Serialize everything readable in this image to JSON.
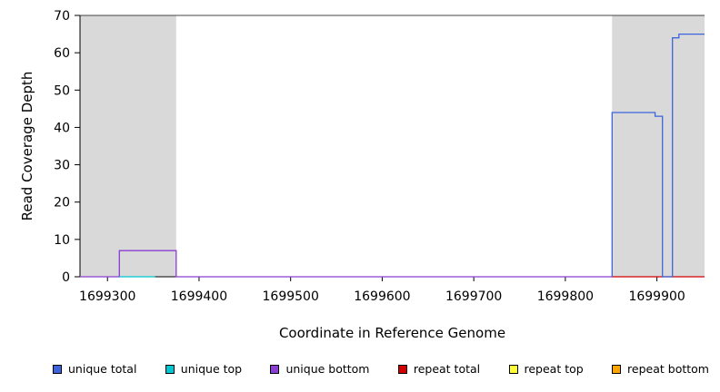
{
  "chart_data": {
    "type": "line",
    "title": "",
    "xlabel": "Coordinate in Reference Genome",
    "ylabel": "Read Coverage Depth",
    "xlim": [
      1699270,
      1699952
    ],
    "ylim": [
      0,
      70
    ],
    "xticks": [
      1699300,
      1699400,
      1699500,
      1699600,
      1699700,
      1699800,
      1699900
    ],
    "yticks": [
      0,
      10,
      20,
      30,
      40,
      50,
      60,
      70
    ],
    "grid": false,
    "legend_position": "bottom",
    "shaded_regions": [
      {
        "name": "shaded-region-left",
        "x0": 1699270,
        "x1": 1699375,
        "color": "#d9d9d9"
      },
      {
        "name": "shaded-region-right",
        "x0": 1699851,
        "x1": 1699952,
        "color": "#d9d9d9"
      }
    ],
    "series": [
      {
        "name": "unique bottom",
        "color": "#8a3fd1",
        "points": [
          [
            1699270,
            0
          ],
          [
            1699313,
            0
          ],
          [
            1699313,
            7
          ],
          [
            1699375,
            7
          ],
          [
            1699375,
            0
          ],
          [
            1699851,
            0
          ]
        ]
      },
      {
        "name": "unique top",
        "color": "#00c8d2",
        "points": [
          [
            1699313,
            0
          ],
          [
            1699352,
            0
          ]
        ]
      },
      {
        "name": "repeat total",
        "color": "#d40000",
        "points": [
          [
            1699851,
            0
          ],
          [
            1699952,
            0
          ]
        ]
      },
      {
        "name": "unique total",
        "color": "#3c64dd",
        "points": [
          [
            1699851,
            0
          ],
          [
            1699851,
            44
          ],
          [
            1699898,
            44
          ],
          [
            1699898,
            43
          ],
          [
            1699906,
            43
          ],
          [
            1699906,
            0
          ],
          [
            1699917,
            0
          ],
          [
            1699917,
            64
          ],
          [
            1699924,
            64
          ],
          [
            1699924,
            65
          ],
          [
            1699952,
            65
          ]
        ]
      }
    ],
    "legend": [
      {
        "label": "unique total",
        "color": "#3c64dd"
      },
      {
        "label": "unique top",
        "color": "#00c8d2"
      },
      {
        "label": "unique bottom",
        "color": "#8a3fd1"
      },
      {
        "label": "repeat total",
        "color": "#d40000"
      },
      {
        "label": "repeat top",
        "color": "#ffff33"
      },
      {
        "label": "repeat bottom",
        "color": "#ffa500"
      }
    ]
  }
}
